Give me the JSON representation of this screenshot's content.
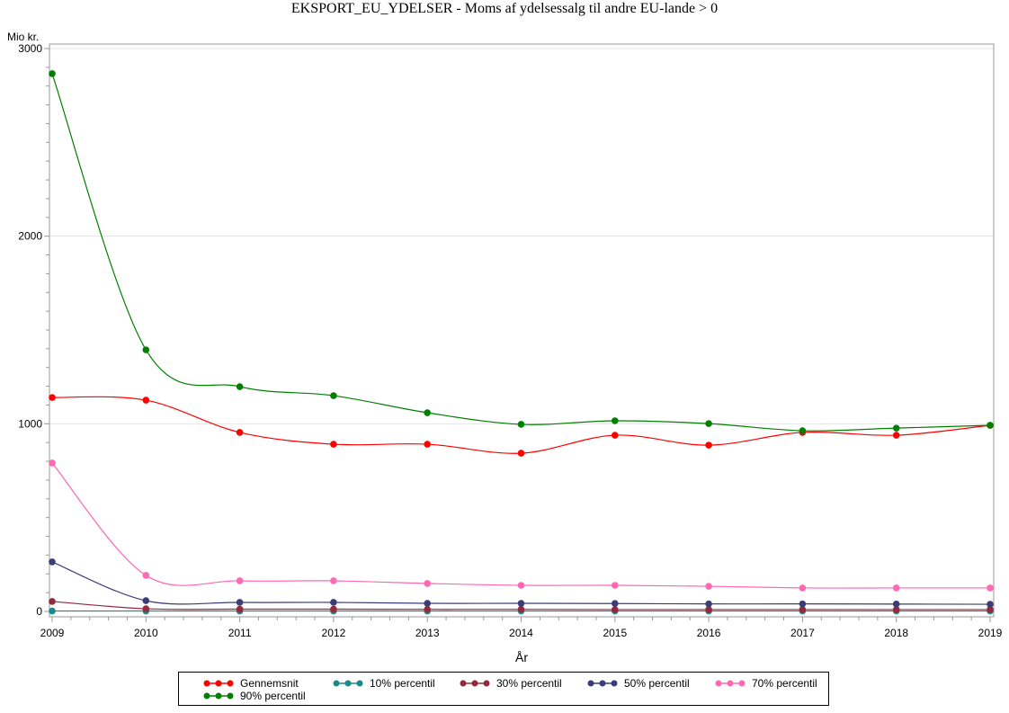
{
  "chart_data": {
    "type": "line",
    "title": "EKSPORT_EU_YDELSER - Moms af ydelsessalg til andre EU-lande > 0",
    "xlabel": "År",
    "ylabel": "Mio kr.",
    "x": [
      2009,
      2010,
      2011,
      2012,
      2013,
      2014,
      2015,
      2016,
      2017,
      2018,
      2019
    ],
    "xlim": [
      2009,
      2019
    ],
    "ylim": [
      0,
      3000
    ],
    "yticks": [
      0,
      1000,
      2000,
      3000
    ],
    "grid": "horizontal",
    "legend_position": "bottom",
    "series": [
      {
        "name": "Gennemsnit",
        "color": "#ff0000",
        "values": [
          1140,
          1126,
          954,
          891,
          891,
          843,
          939,
          886,
          954,
          939,
          992
        ]
      },
      {
        "name": "10% percentil",
        "color": "#1a8a8a",
        "values": [
          2,
          2,
          2,
          2,
          2,
          2,
          2,
          2,
          2,
          2,
          2
        ]
      },
      {
        "name": "30% percentil",
        "color": "#96283c",
        "values": [
          53,
          14,
          12,
          12,
          11,
          11,
          10,
          10,
          10,
          10,
          10
        ]
      },
      {
        "name": "50% percentil",
        "color": "#3c3c78",
        "values": [
          264,
          57,
          48,
          48,
          43,
          43,
          42,
          40,
          40,
          39,
          38
        ]
      },
      {
        "name": "70% percentil",
        "color": "#ff69b4",
        "values": [
          791,
          192,
          163,
          163,
          149,
          139,
          139,
          134,
          125,
          125,
          125
        ]
      },
      {
        "name": "90% percentil",
        "color": "#008000",
        "values": [
          2866,
          1394,
          1198,
          1150,
          1059,
          997,
          1016,
          1001,
          963,
          977,
          992
        ]
      }
    ]
  }
}
